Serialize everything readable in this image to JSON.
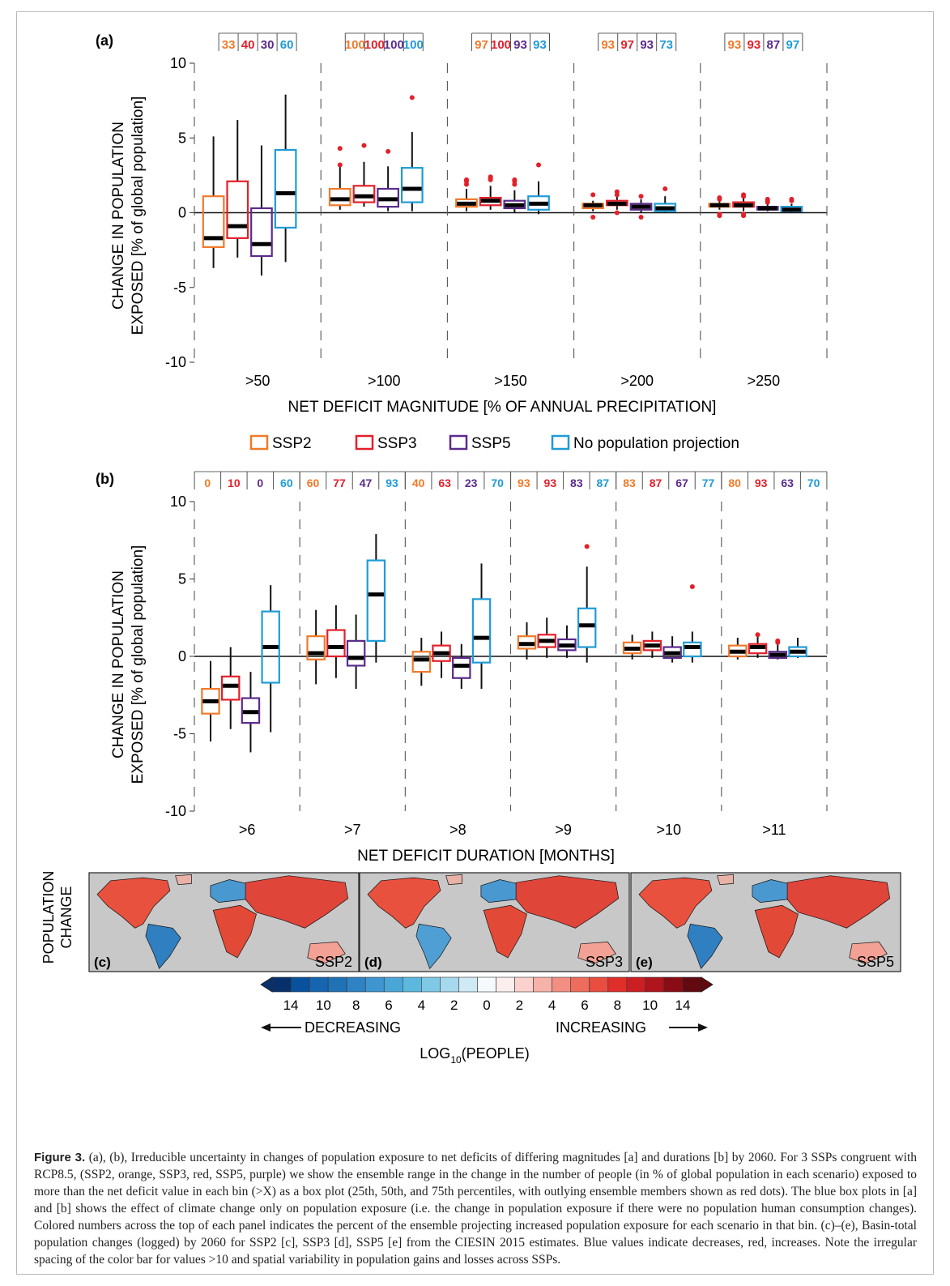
{
  "colors": {
    "ssp2": "#f07a2a",
    "ssp3": "#e3202a",
    "ssp5": "#5b2b8c",
    "nopop": "#1f9bd7",
    "outlier": "#e3202a",
    "map_bg": "#c8c8c8"
  },
  "legend": [
    {
      "key": "ssp2",
      "label": "SSP2"
    },
    {
      "key": "ssp3",
      "label": "SSP3"
    },
    {
      "key": "ssp5",
      "label": "SSP5"
    },
    {
      "key": "nopop",
      "label": "No population projection"
    }
  ],
  "chart_data": [
    {
      "type": "box",
      "panel_label": "(a)",
      "ylabel_line1": "CHANGE IN POPULATION",
      "ylabel_line2": "EXPOSED  [% of global population]",
      "xlabel": "NET DEFICIT MAGNITUDE [% OF ANNUAL PRECIPITATION]",
      "ylim": [
        -10,
        10
      ],
      "yticks": [
        "10",
        "5",
        "0",
        "-5",
        "-10"
      ],
      "categories": [
        ">50",
        ">100",
        ">150",
        ">200",
        ">250"
      ],
      "series_keys": [
        "ssp2",
        "ssp3",
        "ssp5",
        "nopop"
      ],
      "top_percent": [
        [
          "33",
          "40",
          "30",
          "60"
        ],
        [
          "100",
          "100",
          "100",
          "100"
        ],
        [
          "97",
          "100",
          "93",
          "93"
        ],
        [
          "93",
          "97",
          "93",
          "73"
        ],
        [
          "93",
          "93",
          "87",
          "97"
        ]
      ],
      "boxes": [
        [
          [
            -3.7,
            -2.3,
            -1.7,
            1.1,
            5.1
          ],
          [
            -3.0,
            -1.7,
            -0.9,
            2.1,
            6.2
          ],
          [
            -4.2,
            -2.9,
            -2.1,
            0.3,
            4.5
          ],
          [
            -3.3,
            -1.0,
            1.3,
            4.2,
            7.9
          ]
        ],
        [
          [
            0.2,
            0.5,
            0.9,
            1.6,
            3.2
          ],
          [
            0.4,
            0.7,
            1.1,
            1.8,
            3.4
          ],
          [
            0.1,
            0.4,
            0.9,
            1.6,
            3.1
          ],
          [
            0.1,
            0.7,
            1.6,
            3.0,
            5.4
          ]
        ],
        [
          [
            0.1,
            0.4,
            0.6,
            0.9,
            1.6
          ],
          [
            0.2,
            0.5,
            0.8,
            1.0,
            1.8
          ],
          [
            0.0,
            0.3,
            0.5,
            0.8,
            1.5
          ],
          [
            -0.1,
            0.2,
            0.6,
            1.1,
            2.1
          ]
        ],
        [
          [
            0.1,
            0.3,
            0.5,
            0.6,
            0.8
          ],
          [
            0.2,
            0.5,
            0.6,
            0.8,
            1.1
          ],
          [
            0.0,
            0.2,
            0.4,
            0.6,
            0.9
          ],
          [
            0.0,
            0.1,
            0.3,
            0.6,
            1.1
          ]
        ],
        [
          [
            0.2,
            0.4,
            0.5,
            0.6,
            0.9
          ],
          [
            0.1,
            0.4,
            0.5,
            0.7,
            1.0
          ],
          [
            0.1,
            0.2,
            0.3,
            0.4,
            0.7
          ],
          [
            0.0,
            0.1,
            0.2,
            0.4,
            0.6
          ]
        ]
      ],
      "outliers": [
        [
          [],
          [],
          [],
          []
        ],
        [
          [
            4.3,
            3.2
          ],
          [
            4.5
          ],
          [
            4.1
          ],
          [
            7.7
          ]
        ],
        [
          [
            2.2,
            1.9,
            2.1
          ],
          [
            2.4,
            2.2,
            2.3
          ],
          [
            2.2,
            1.9,
            2.1
          ],
          [
            3.2
          ]
        ],
        [
          [
            1.2,
            -0.3
          ],
          [
            1.4,
            1.2,
            0.0
          ],
          [
            1.1,
            -0.3
          ],
          [
            1.6
          ]
        ],
        [
          [
            1.0,
            0.9,
            -0.2,
            -0.1
          ],
          [
            1.2,
            1.1,
            -0.2,
            -0.1
          ],
          [
            0.9,
            0.8,
            0.7
          ],
          [
            0.9,
            0.8
          ]
        ]
      ]
    },
    {
      "type": "box",
      "panel_label": "(b)",
      "ylabel_line1": "CHANGE IN POPULATION",
      "ylabel_line2": "EXPOSED  [% of global population]",
      "xlabel": "NET DEFICIT DURATION [MONTHS]",
      "ylim": [
        -10,
        10
      ],
      "yticks": [
        "10",
        "5",
        "0",
        "-5",
        "-10"
      ],
      "categories": [
        ">6",
        ">7",
        ">8",
        ">9",
        ">10",
        ">11"
      ],
      "series_keys": [
        "ssp2",
        "ssp3",
        "ssp5",
        "nopop"
      ],
      "top_percent": [
        [
          "0",
          "10",
          "0",
          "60"
        ],
        [
          "60",
          "77",
          "47",
          "93"
        ],
        [
          "40",
          "63",
          "23",
          "70"
        ],
        [
          "93",
          "93",
          "83",
          "87"
        ],
        [
          "83",
          "87",
          "67",
          "77"
        ],
        [
          "80",
          "93",
          "63",
          "70"
        ]
      ],
      "boxes": [
        [
          [
            -5.5,
            -3.7,
            -2.9,
            -2.1,
            -0.3
          ],
          [
            -4.7,
            -2.8,
            -1.9,
            -1.3,
            0.6
          ],
          [
            -6.2,
            -4.3,
            -3.6,
            -2.7,
            -1.0
          ],
          [
            -4.9,
            -1.7,
            0.6,
            2.9,
            4.6
          ]
        ],
        [
          [
            -1.8,
            -0.2,
            0.2,
            1.3,
            3.0
          ],
          [
            -1.4,
            0.0,
            0.6,
            1.7,
            3.3
          ],
          [
            -2.1,
            -0.6,
            -0.1,
            1.0,
            2.7
          ],
          [
            -0.4,
            1.0,
            4.0,
            6.2,
            7.9
          ]
        ],
        [
          [
            -1.9,
            -1.0,
            -0.2,
            0.3,
            1.2
          ],
          [
            -1.4,
            -0.3,
            0.2,
            0.7,
            1.6
          ],
          [
            -2.1,
            -1.4,
            -0.6,
            -0.1,
            0.8
          ],
          [
            -2.1,
            -0.4,
            1.2,
            3.7,
            6.0
          ]
        ],
        [
          [
            -0.2,
            0.5,
            0.8,
            1.3,
            2.2
          ],
          [
            -0.1,
            0.6,
            1.0,
            1.4,
            2.5
          ],
          [
            -0.1,
            0.4,
            0.7,
            1.1,
            2.0
          ],
          [
            -0.4,
            0.6,
            2.0,
            3.1,
            5.8
          ]
        ],
        [
          [
            -0.2,
            0.2,
            0.5,
            0.9,
            1.4
          ],
          [
            -0.1,
            0.4,
            0.7,
            1.0,
            1.6
          ],
          [
            -0.4,
            -0.1,
            0.2,
            0.6,
            1.3
          ],
          [
            -0.4,
            0.0,
            0.6,
            0.9,
            1.6
          ]
        ],
        [
          [
            -0.2,
            0.0,
            0.3,
            0.7,
            1.2
          ],
          [
            -0.1,
            0.2,
            0.6,
            0.8,
            1.4
          ],
          [
            -0.2,
            -0.1,
            0.1,
            0.3,
            0.8
          ],
          [
            -0.1,
            0.0,
            0.3,
            0.6,
            1.2
          ]
        ]
      ],
      "outliers": [
        [
          [],
          [],
          [],
          []
        ],
        [
          [],
          [],
          [],
          []
        ],
        [
          [],
          [],
          [],
          []
        ],
        [
          [],
          [],
          [],
          [
            7.1
          ]
        ],
        [
          [],
          [],
          [],
          [
            4.5
          ]
        ],
        [
          [],
          [
            1.4
          ],
          [
            1.0,
            0.9
          ],
          []
        ]
      ]
    }
  ],
  "maps": {
    "row_label_line1": "POPULATION",
    "row_label_line2": "CHANGE",
    "panels": [
      {
        "letter": "(c)",
        "ssp": "SSP2"
      },
      {
        "letter": "(d)",
        "ssp": "SSP3"
      },
      {
        "letter": "(e)",
        "ssp": "SSP5"
      }
    ]
  },
  "colorbar": {
    "colors": [
      "#08306b",
      "#08519c",
      "#1565b0",
      "#2171b5",
      "#2f83c4",
      "#3f95cf",
      "#4ba6d8",
      "#5cb8df",
      "#7fc8e6",
      "#a7d9ee",
      "#cfeaf5",
      "#f5fbfd",
      "#fdeeee",
      "#fad1cc",
      "#f6b1a8",
      "#f28f82",
      "#ee6c5c",
      "#e84d40",
      "#e02f2b",
      "#cc1f24",
      "#b0141c",
      "#8a0c14",
      "#620a0f"
    ],
    "tick_labels": [
      "14",
      "10",
      "8",
      "6",
      "4",
      "2",
      "0",
      "2",
      "4",
      "6",
      "8",
      "10",
      "14"
    ],
    "decreasing": "DECREASING",
    "increasing": "INCREASING",
    "title_pre": "LOG",
    "title_sub": "10",
    "title_post": "(PEOPLE)"
  },
  "caption": {
    "label": "Figure 3.",
    "text": "(a), (b), Irreducible uncertainty in changes of population exposure to net deficits of differing magnitudes [a] and durations [b] by 2060. For 3 SSPs congruent with RCP8.5, (SSP2, orange, SSP3, red, SSP5, purple) we show the ensemble range in the change in the number of people (in % of global population in each scenario) exposed to more than the net deficit value in each bin (>X) as a box plot (25th, 50th, and 75th percentiles, with outlying ensemble members shown as red dots). The blue box plots in [a] and [b] shows the effect of climate change only on population exposure (i.e. the change in population exposure if there were no population human consumption changes). Colored numbers across the top of each panel indicates the percent of the ensemble projecting increased population exposure for each scenario in that bin. (c)–(e), Basin-total population changes (logged) by 2060 for SSP2 [c], SSP3 [d], SSP5 [e] from the CIESIN 2015 estimates. Blue values indicate decreases, red, increases. Note the irregular spacing of the color bar for values >10 and spatial variability in population gains and losses across SSPs."
  }
}
